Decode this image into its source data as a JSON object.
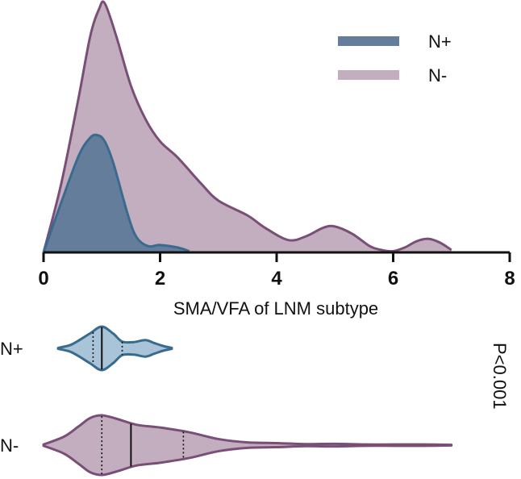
{
  "chart_data": [
    {
      "type": "area",
      "xlabel": "SMA/VFA of LNM subtype",
      "xlim": [
        0,
        8
      ],
      "x_ticks": [
        0,
        2,
        4,
        6,
        8
      ],
      "x_tick_labels": [
        "0",
        "2",
        "4",
        "6",
        "8"
      ],
      "legend_position": "top-right",
      "series": [
        {
          "name": "N-",
          "color_fill": "#c2aebf",
          "color_line": "#7a4f77",
          "x": [
            0,
            0.3,
            0.6,
            0.8,
            0.95,
            1.05,
            1.25,
            1.5,
            1.75,
            2.0,
            2.3,
            2.7,
            3.0,
            3.5,
            3.8,
            4.2,
            4.5,
            4.8,
            5.0,
            5.3,
            5.6,
            5.8,
            6.0,
            6.2,
            6.4,
            6.6,
            6.8,
            7.0
          ],
          "y": [
            0,
            0.55,
            1.25,
            1.75,
            1.97,
            2.02,
            1.75,
            1.35,
            1.08,
            0.9,
            0.77,
            0.56,
            0.42,
            0.3,
            0.2,
            0.1,
            0.13,
            0.2,
            0.21,
            0.15,
            0.05,
            0.02,
            0.01,
            0.04,
            0.09,
            0.11,
            0.08,
            0.02
          ]
        },
        {
          "name": "N+",
          "color_fill": "#647d9b",
          "color_line": "#3a6b8f",
          "x": [
            0,
            0.3,
            0.6,
            0.8,
            0.93,
            1.05,
            1.2,
            1.45,
            1.6,
            1.8,
            2.0,
            2.3,
            2.5
          ],
          "y": [
            0,
            0.4,
            0.78,
            0.93,
            0.95,
            0.9,
            0.72,
            0.3,
            0.12,
            0.05,
            0.06,
            0.04,
            0.01
          ]
        }
      ],
      "y_max": 2.02
    },
    {
      "type": "violin",
      "orientation": "horizontal",
      "xlim": [
        0,
        8
      ],
      "categories": [
        "N+",
        "N-"
      ],
      "annotation": "P<0.001",
      "violins": [
        {
          "category": "N+",
          "color_fill": "#a9c4d8",
          "color_line": "#3a6b8f",
          "x": [
            0.25,
            0.45,
            0.6,
            0.8,
            1.0,
            1.2,
            1.35,
            1.55,
            1.75,
            1.9,
            2.05,
            2.2
          ],
          "w": [
            0.02,
            0.13,
            0.32,
            0.62,
            0.9,
            0.6,
            0.28,
            0.26,
            0.34,
            0.22,
            0.1,
            0.02
          ],
          "median": 1.0,
          "q1": 0.85,
          "q3": 1.35,
          "width_scale": 1.0
        },
        {
          "category": "N-",
          "color_fill": "#c2aebf",
          "color_line": "#7a4f77",
          "x": [
            0,
            0.35,
            0.6,
            0.8,
            1.0,
            1.25,
            1.6,
            2.0,
            2.5,
            3.0,
            3.5,
            4.0,
            4.5,
            5.0,
            5.5,
            6.0,
            6.5,
            7.0
          ],
          "w": [
            0.02,
            0.25,
            0.55,
            0.8,
            0.88,
            0.78,
            0.6,
            0.52,
            0.38,
            0.18,
            0.08,
            0.06,
            0.03,
            0.04,
            0.02,
            0.02,
            0.02,
            0.01
          ],
          "median": 1.5,
          "q1": 1.0,
          "q3": 2.4,
          "width_scale": 1.0
        }
      ]
    }
  ]
}
